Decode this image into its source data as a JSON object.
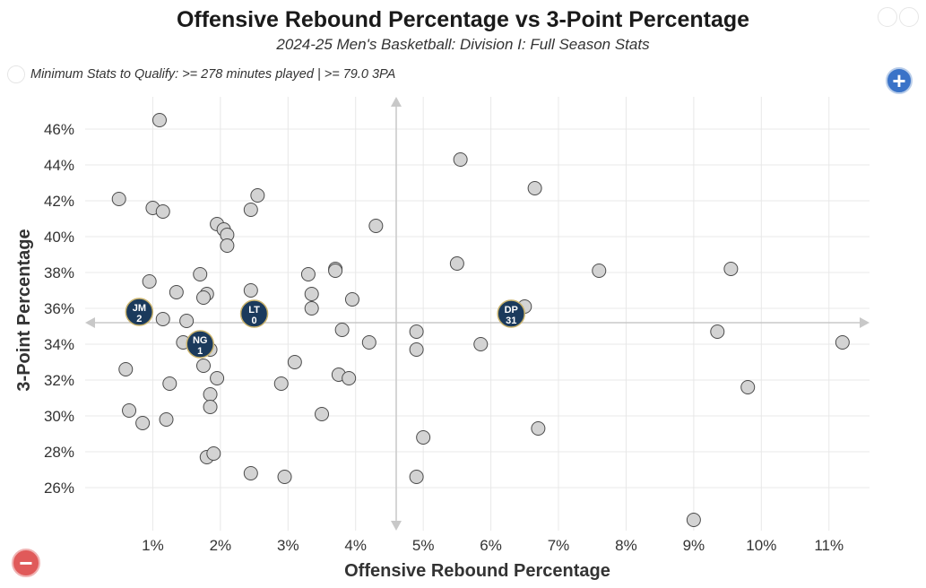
{
  "title": "Offensive Rebound Percentage vs 3-Point Percentage",
  "subtitle": "2024-25 Men's Basketball: Division I: Full Season Stats",
  "qualifier": "Minimum Stats to Qualify: >= 278 minutes played | >= 79.0 3PA",
  "controls": {
    "zoom_in": "+",
    "zoom_out": "−"
  },
  "colors": {
    "point_fill": "#d3d3d3",
    "point_stroke": "#4a4a4a",
    "highlight_fill": "#1b3a5c",
    "highlight_ring": "#c9b26b",
    "grid": "#e8e8e8",
    "crosshair": "#c8c8c8"
  },
  "chart_data": {
    "type": "scatter",
    "title": "Offensive Rebound Percentage vs 3-Point Percentage",
    "subtitle": "2024-25 Men's Basketball: Division I: Full Season Stats",
    "xlabel": "Offensive Rebound Percentage",
    "ylabel": "3-Point Percentage",
    "xlim": [
      0.0,
      11.6
    ],
    "ylim": [
      23.6,
      47.8
    ],
    "x_ticks": [
      1,
      2,
      3,
      4,
      5,
      6,
      7,
      8,
      9,
      10,
      11
    ],
    "y_ticks": [
      26,
      28,
      30,
      32,
      34,
      36,
      38,
      40,
      42,
      44,
      46
    ],
    "x_tick_format": "%",
    "y_tick_format": "%",
    "grid": true,
    "reference_lines": {
      "x": 4.6,
      "y": 35.2
    },
    "points": [
      [
        1.1,
        46.5
      ],
      [
        0.5,
        42.1
      ],
      [
        1.0,
        41.6
      ],
      [
        1.15,
        41.4
      ],
      [
        2.55,
        42.3
      ],
      [
        2.45,
        41.5
      ],
      [
        1.95,
        40.7
      ],
      [
        2.05,
        40.4
      ],
      [
        2.1,
        40.1
      ],
      [
        2.1,
        39.5
      ],
      [
        4.3,
        40.6
      ],
      [
        5.55,
        44.3
      ],
      [
        6.65,
        42.7
      ],
      [
        5.5,
        38.5
      ],
      [
        7.6,
        38.1
      ],
      [
        9.55,
        38.2
      ],
      [
        0.95,
        37.5
      ],
      [
        1.7,
        37.9
      ],
      [
        1.35,
        36.9
      ],
      [
        1.8,
        36.8
      ],
      [
        1.75,
        36.6
      ],
      [
        2.45,
        37.0
      ],
      [
        3.3,
        37.9
      ],
      [
        3.7,
        38.2
      ],
      [
        3.7,
        38.1
      ],
      [
        3.35,
        36.8
      ],
      [
        3.35,
        36.0
      ],
      [
        3.95,
        36.5
      ],
      [
        6.5,
        36.1
      ],
      [
        1.15,
        35.4
      ],
      [
        1.5,
        35.3
      ],
      [
        3.8,
        34.8
      ],
      [
        4.2,
        34.1
      ],
      [
        4.9,
        34.7
      ],
      [
        4.9,
        33.7
      ],
      [
        5.85,
        34.0
      ],
      [
        9.35,
        34.7
      ],
      [
        11.2,
        34.1
      ],
      [
        1.45,
        34.1
      ],
      [
        1.85,
        33.7
      ],
      [
        1.75,
        32.8
      ],
      [
        1.95,
        32.1
      ],
      [
        3.1,
        33.0
      ],
      [
        2.9,
        31.8
      ],
      [
        3.75,
        32.3
      ],
      [
        3.9,
        32.1
      ],
      [
        0.6,
        32.6
      ],
      [
        1.25,
        31.8
      ],
      [
        1.85,
        31.2
      ],
      [
        1.85,
        30.5
      ],
      [
        0.65,
        30.3
      ],
      [
        0.85,
        29.6
      ],
      [
        1.2,
        29.8
      ],
      [
        3.5,
        30.1
      ],
      [
        5.0,
        28.8
      ],
      [
        6.7,
        29.3
      ],
      [
        9.8,
        31.6
      ],
      [
        1.8,
        27.7
      ],
      [
        1.9,
        27.9
      ],
      [
        2.45,
        26.8
      ],
      [
        2.95,
        26.6
      ],
      [
        4.9,
        26.6
      ],
      [
        9.0,
        24.2
      ]
    ],
    "highlighted": [
      {
        "name": "JM",
        "number": "2",
        "x": 0.8,
        "y": 35.8
      },
      {
        "name": "LT",
        "number": "0",
        "x": 2.5,
        "y": 35.7
      },
      {
        "name": "NG",
        "number": "1",
        "x": 1.7,
        "y": 34.0
      },
      {
        "name": "DP",
        "number": "31",
        "x": 6.3,
        "y": 35.7
      }
    ]
  }
}
